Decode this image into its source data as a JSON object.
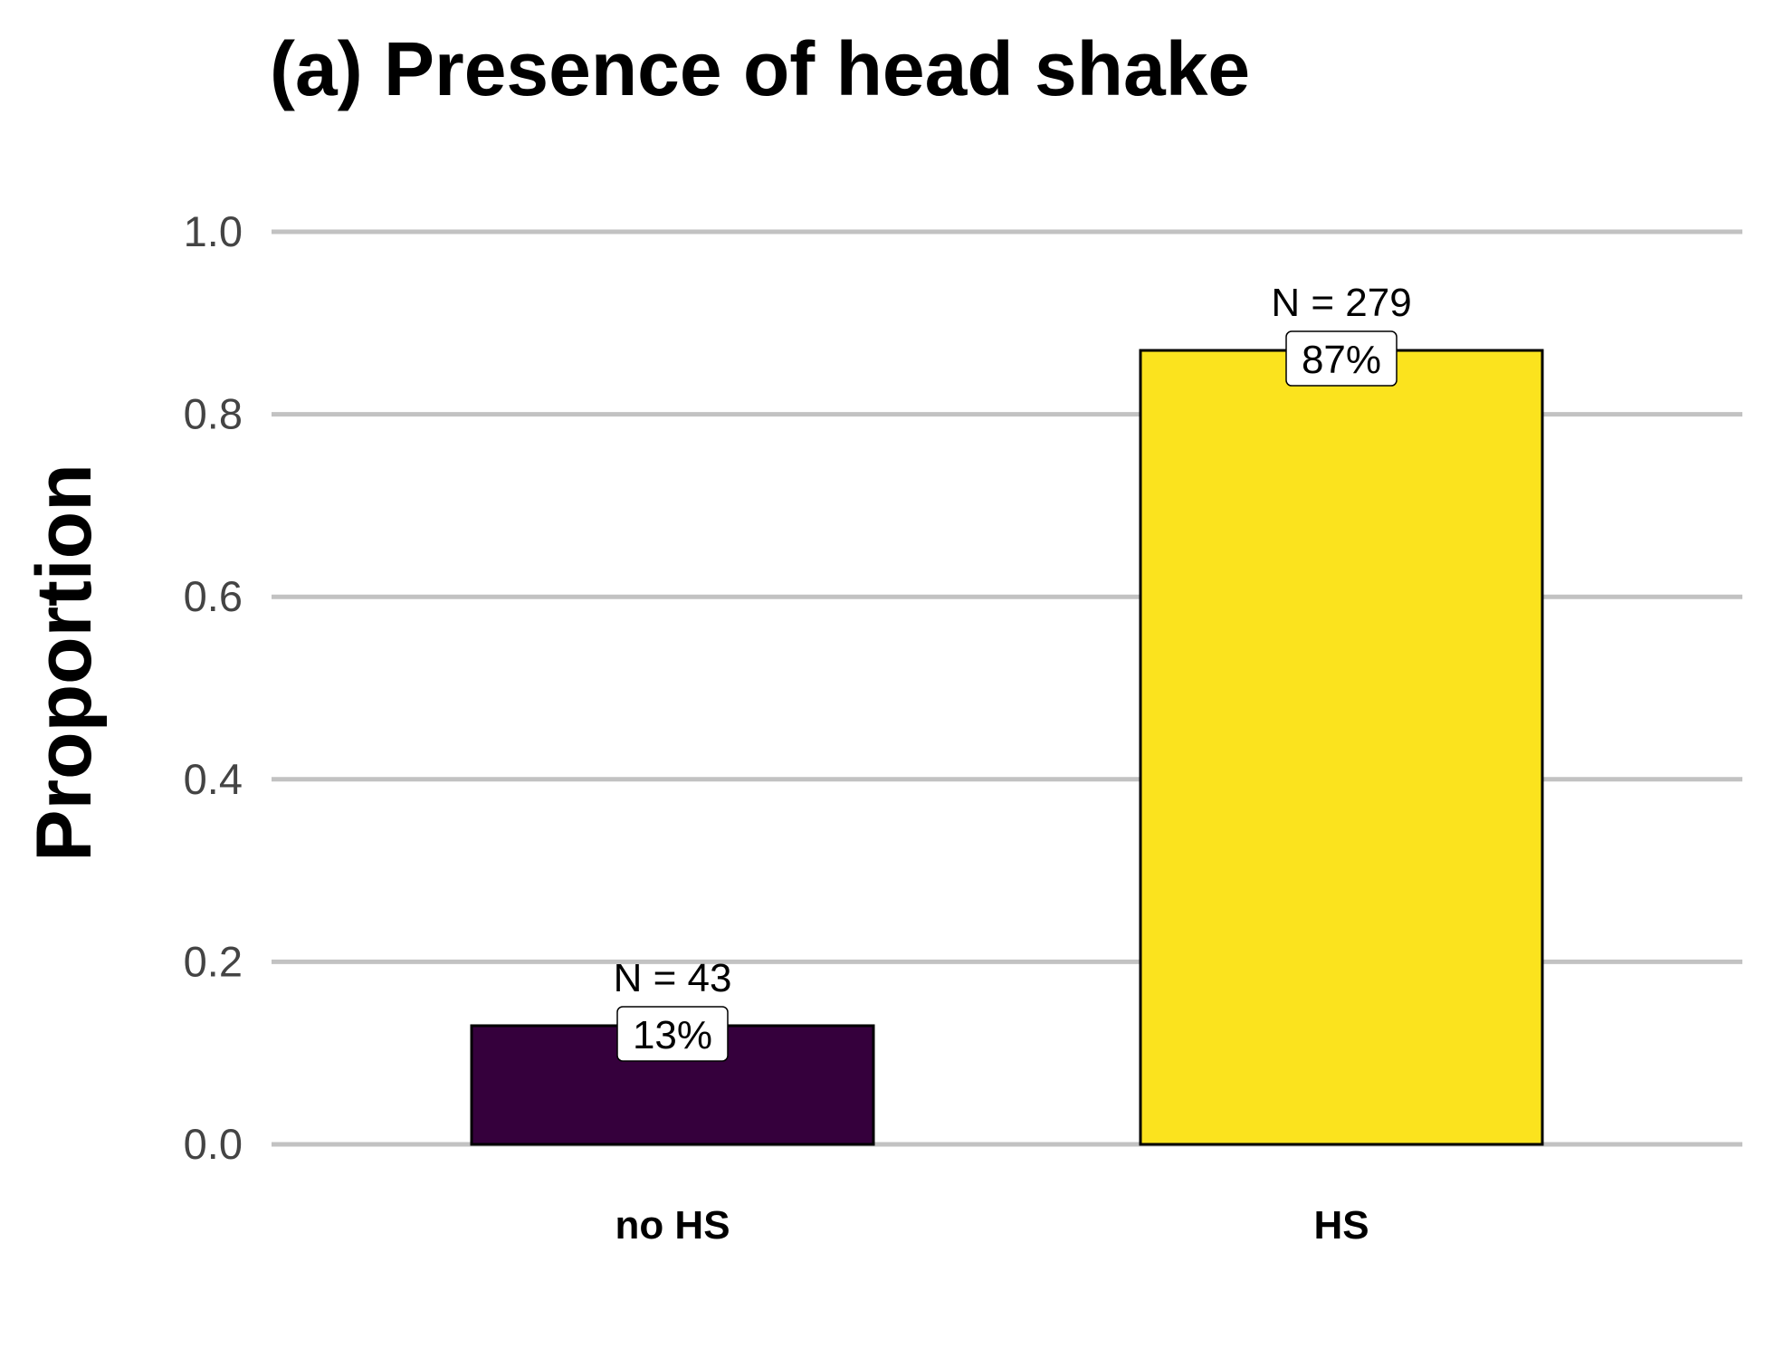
{
  "chart_data": {
    "type": "bar",
    "title": "(a) Presence of head shake",
    "xlabel": "",
    "ylabel": "Proportion",
    "ylim": [
      0,
      1.0
    ],
    "y_ticks": [
      "0.0",
      "0.2",
      "0.4",
      "0.6",
      "0.8",
      "1.0"
    ],
    "grid": "horizontal major",
    "legend": "none",
    "categories": [
      "no HS",
      "HS"
    ],
    "values": [
      0.13,
      0.87
    ],
    "n_labels": [
      "N = 43",
      "N = 279"
    ],
    "percent_labels": [
      "13%",
      "87%"
    ],
    "colors": [
      "#35003c",
      "#fbe31e"
    ],
    "grid_color": "#c2c2c2",
    "outline_color": "#000000"
  }
}
